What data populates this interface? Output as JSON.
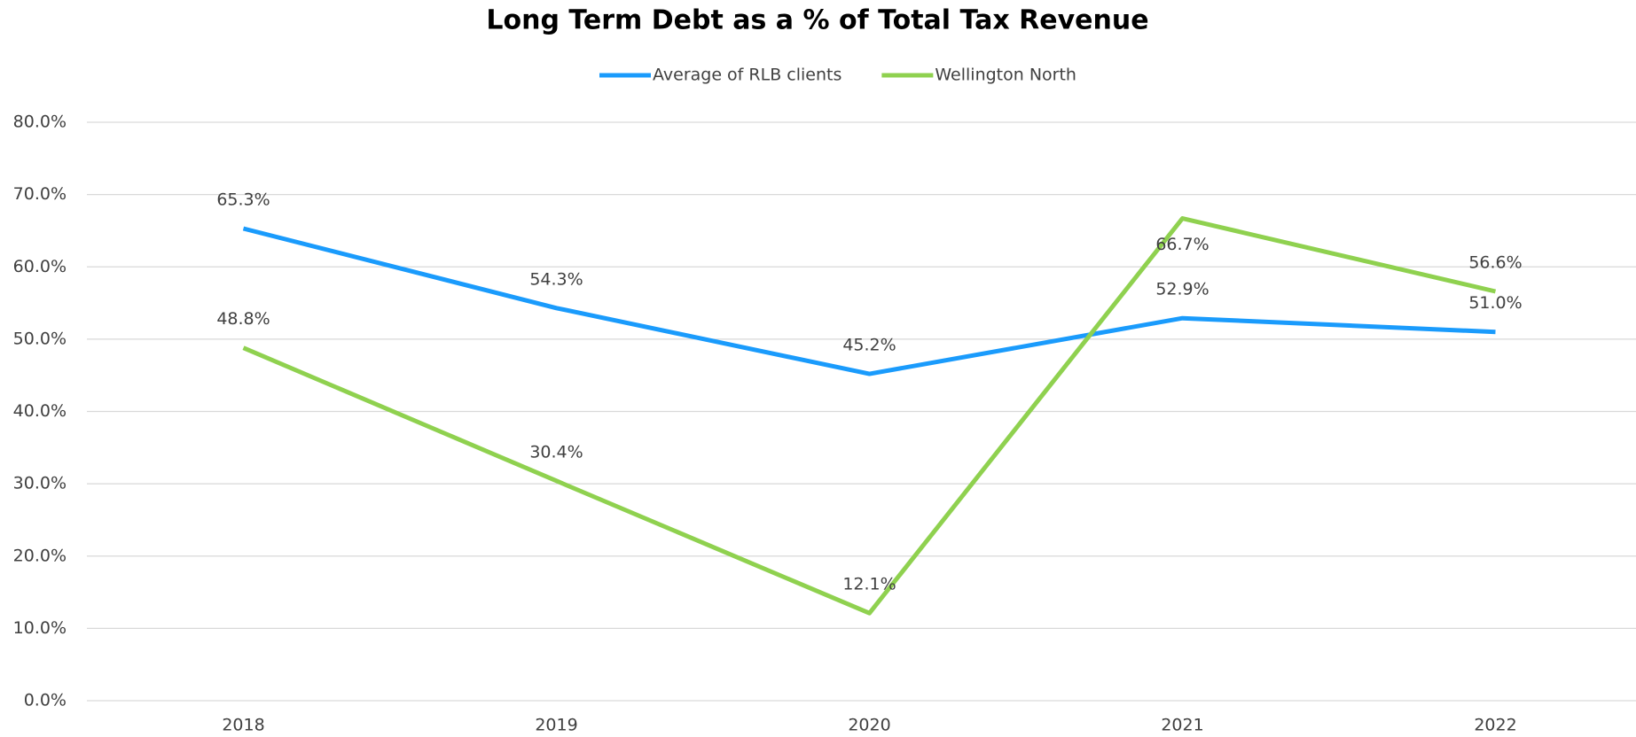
{
  "chart_data": {
    "type": "line",
    "title": "Long Term Debt as a % of Total Tax Revenue",
    "categories": [
      "2018",
      "2019",
      "2020",
      "2021",
      "2022"
    ],
    "series": [
      {
        "name": "Average of RLB clients",
        "color": "#1a9bfc",
        "values": [
          65.3,
          54.3,
          45.2,
          52.9,
          51.0
        ],
        "value_labels": [
          "65.3%",
          "54.3%",
          "45.2%",
          "52.9%",
          "51.0%"
        ]
      },
      {
        "name": "Wellington North",
        "color": "#8fd14f",
        "values": [
          48.8,
          30.4,
          12.1,
          66.7,
          56.6
        ],
        "value_labels": [
          "48.8%",
          "30.4%",
          "12.1%",
          "66.7%",
          "56.6%"
        ]
      }
    ],
    "ylim": [
      0,
      80
    ],
    "yticks": [
      {
        "value": 0,
        "label": "0.0%"
      },
      {
        "value": 10,
        "label": "10.0%"
      },
      {
        "value": 20,
        "label": "20.0%"
      },
      {
        "value": 30,
        "label": "30.0%"
      },
      {
        "value": 40,
        "label": "40.0%"
      },
      {
        "value": 50,
        "label": "50.0%"
      },
      {
        "value": 60,
        "label": "60.0%"
      },
      {
        "value": 70,
        "label": "70.0%"
      },
      {
        "value": 80,
        "label": "80.0%"
      }
    ],
    "grid": true,
    "legend": "top"
  }
}
